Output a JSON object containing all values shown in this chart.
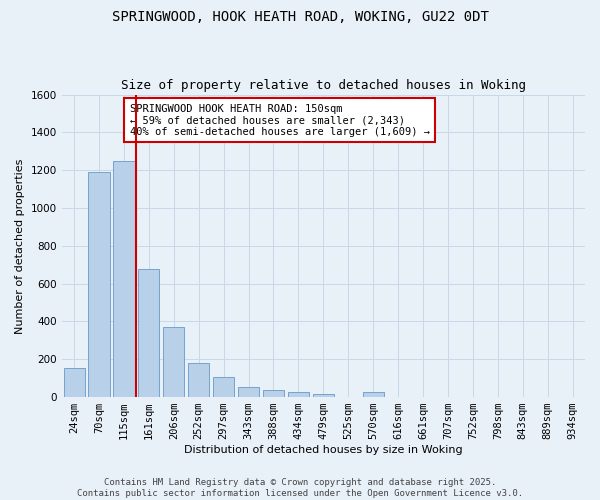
{
  "title_line1": "SPRINGWOOD, HOOK HEATH ROAD, WOKING, GU22 0DT",
  "title_line2": "Size of property relative to detached houses in Woking",
  "xlabel": "Distribution of detached houses by size in Woking",
  "ylabel": "Number of detached properties",
  "categories": [
    "24sqm",
    "70sqm",
    "115sqm",
    "161sqm",
    "206sqm",
    "252sqm",
    "297sqm",
    "343sqm",
    "388sqm",
    "434sqm",
    "479sqm",
    "525sqm",
    "570sqm",
    "616sqm",
    "661sqm",
    "707sqm",
    "752sqm",
    "798sqm",
    "843sqm",
    "889sqm",
    "934sqm"
  ],
  "values": [
    155,
    1190,
    1250,
    680,
    370,
    180,
    105,
    55,
    35,
    25,
    15,
    0,
    25,
    0,
    0,
    0,
    0,
    0,
    0,
    0,
    0
  ],
  "bar_color": "#b8d0e8",
  "bar_edge_color": "#6699cc",
  "vline_color": "#cc0000",
  "annotation_text": "SPRINGWOOD HOOK HEATH ROAD: 150sqm\n← 59% of detached houses are smaller (2,343)\n40% of semi-detached houses are larger (1,609) →",
  "annotation_box_color": "#ffffff",
  "annotation_box_edge": "#cc0000",
  "ylim": [
    0,
    1600
  ],
  "yticks": [
    0,
    200,
    400,
    600,
    800,
    1000,
    1200,
    1400,
    1600
  ],
  "grid_color": "#c8d8e8",
  "background_color": "#e8f0f8",
  "footer": "Contains HM Land Registry data © Crown copyright and database right 2025.\nContains public sector information licensed under the Open Government Licence v3.0.",
  "title_fontsize": 10,
  "subtitle_fontsize": 9,
  "axis_label_fontsize": 8,
  "tick_fontsize": 7.5,
  "annotation_fontsize": 7.5,
  "footer_fontsize": 6.5
}
